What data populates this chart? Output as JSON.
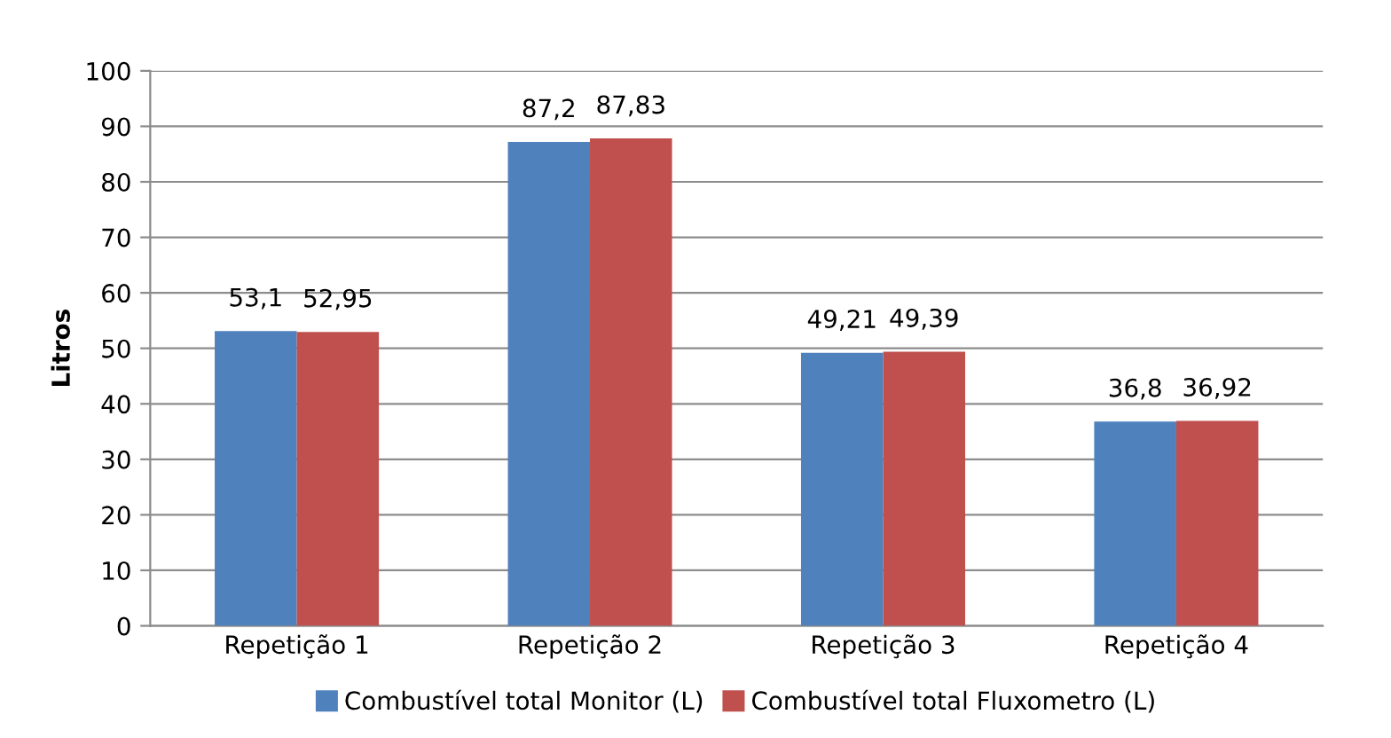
{
  "chart_data": {
    "type": "bar",
    "ylabel": "Litros",
    "categories": [
      "Repetição 1",
      "Repetição 2",
      "Repetição 3",
      "Repetição 4"
    ],
    "series": [
      {
        "name": "Combustível total Monitor (L)",
        "color": "#4f81bd",
        "values": [
          53.1,
          87.2,
          49.21,
          36.8
        ],
        "value_labels": [
          "53,1",
          "87,2",
          "49,21",
          "36,8"
        ]
      },
      {
        "name": "Combustível total Fluxometro (L)",
        "color": "#c0504d",
        "values": [
          52.95,
          87.83,
          49.39,
          36.92
        ],
        "value_labels": [
          "52,95",
          "87,83",
          "49,39",
          "36,92"
        ]
      }
    ],
    "ylim": [
      0,
      100
    ],
    "yticks": [
      0,
      10,
      20,
      30,
      40,
      50,
      60,
      70,
      80,
      90,
      100
    ],
    "grid": "y",
    "legend": "bottom"
  }
}
